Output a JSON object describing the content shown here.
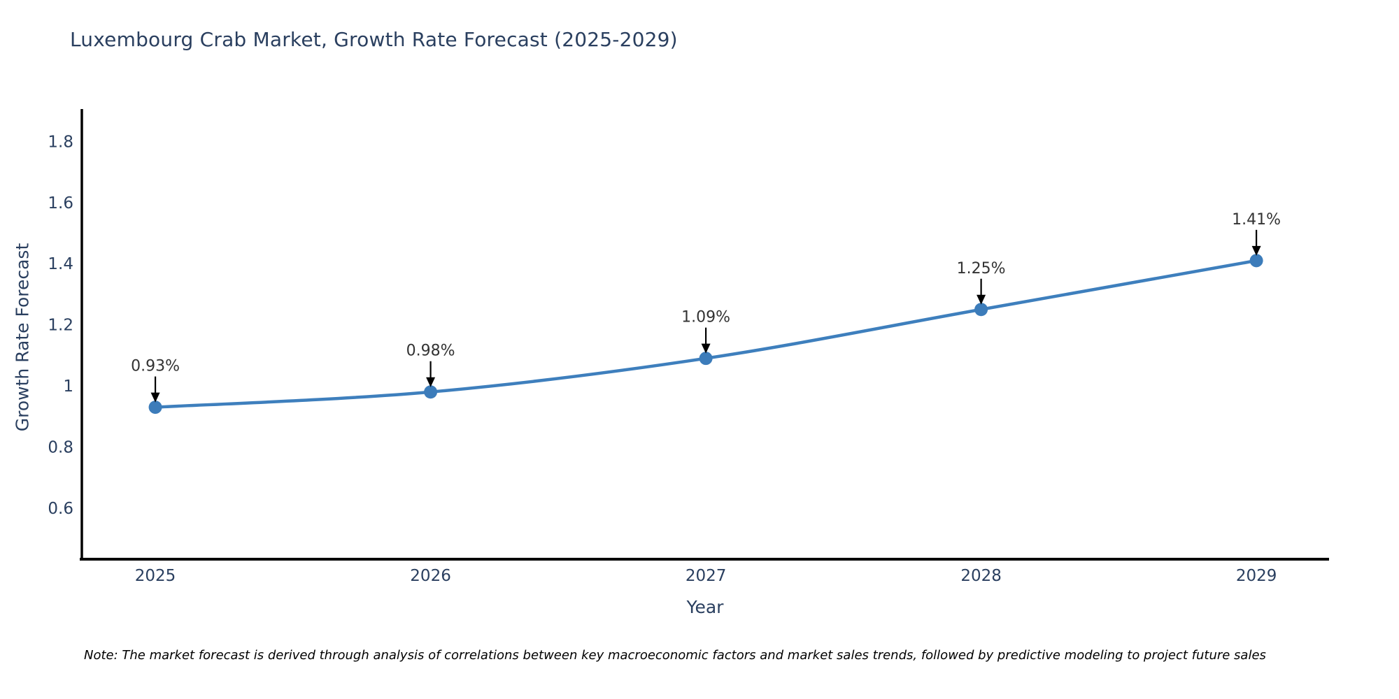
{
  "title": "Luxembourg Crab Market, Growth Rate Forecast (2025-2029)",
  "note": "Note: The market forecast is derived through analysis of correlations between key macroeconomic factors and market sales trends, followed by predictive modeling to project future sales",
  "chart_data": {
    "type": "line",
    "title": "Luxembourg Crab Market, Growth Rate Forecast (2025-2029)",
    "xlabel": "Year",
    "ylabel": "Growth Rate Forecast",
    "x": [
      2025,
      2026,
      2027,
      2028,
      2029
    ],
    "y": [
      0.93,
      0.98,
      1.09,
      1.25,
      1.41
    ],
    "point_labels": [
      "0.93%",
      "0.98%",
      "1.09%",
      "1.25%",
      "1.41%"
    ],
    "x_tick_labels": [
      "2025",
      "2026",
      "2027",
      "2028",
      "2029"
    ],
    "x_tick_values": [
      2025,
      2026,
      2027,
      2028,
      2029
    ],
    "y_tick_labels": [
      "0.6",
      "0.8",
      "1",
      "1.2",
      "1.4",
      "1.6",
      "1.8"
    ],
    "y_tick_values": [
      0.6,
      0.8,
      1.0,
      1.2,
      1.4,
      1.6,
      1.8
    ],
    "xlim": [
      2024.733,
      2029.264
    ],
    "ylim": [
      0.4325,
      1.9016
    ],
    "grid": false,
    "legend": "none",
    "line_color": "#3e7fbd",
    "marker_color": "#3c7cba",
    "axis_color": "#000000",
    "tick_color": "#2a3f5f",
    "annotation_text_color": "#333333",
    "annotation_arrow_color": "#000000"
  }
}
